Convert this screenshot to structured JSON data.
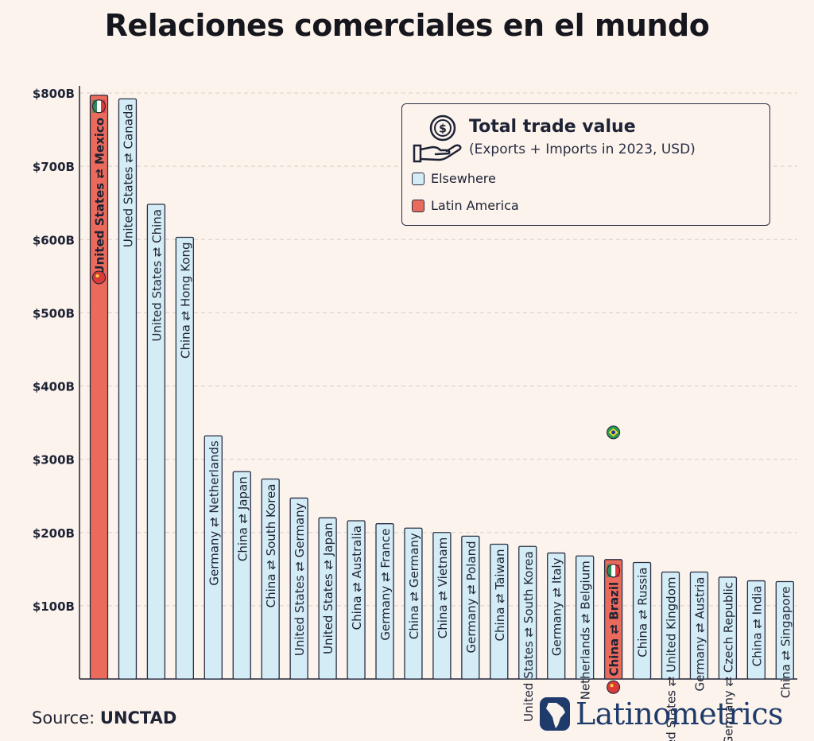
{
  "title": "Relaciones comerciales en el mundo",
  "legend": {
    "title": "Total trade value",
    "subtitle": "(Exports + Imports in 2023, USD)",
    "items": [
      {
        "label": "Elsewhere",
        "color": "#d4ecf5"
      },
      {
        "label": "Latin America",
        "color": "#ea6b5c"
      }
    ]
  },
  "source": {
    "prefix": "Source:",
    "name": "UNCTAD"
  },
  "brand": "Latinometrics",
  "colors": {
    "elsewhere": "#d4ecf5",
    "latin_america": "#ea6b5c",
    "outline": "#2a2f45",
    "background": "#fbf3ec"
  },
  "chart_data": {
    "type": "bar",
    "title": "Relaciones comerciales en el mundo",
    "ylim": [
      0,
      800
    ],
    "yticks": [
      "$100B",
      "$200B",
      "$300B",
      "$400B",
      "$500B",
      "$600B",
      "$700B",
      "$800B"
    ],
    "grid": true,
    "legend_position": "top-right",
    "categories": [
      "United States ⇄ Mexico",
      "United States ⇄ Canada",
      "United States ⇄ China",
      "China ⇄ Hong Kong",
      "Germany ⇄ Netherlands",
      "China ⇄ Japan",
      "China ⇄ South Korea",
      "United States ⇄ Germany",
      "United States ⇄ Japan",
      "China ⇄ Australia",
      "Germany ⇄ France",
      "China ⇄ Germany",
      "China ⇄ Vietnam",
      "Germany ⇄ Poland",
      "China ⇄ Taiwan",
      "United States ⇄ South Korea",
      "Germany ⇄ Italy",
      "Netherlands ⇄ Belgium",
      "China ⇄ Brazil",
      "China ⇄ Russia",
      "United States ⇄ United Kingdom",
      "Germany ⇄ Austria",
      "Germany ⇄ Czech Republic",
      "China ⇄ India",
      "China ⇄ Singapore"
    ],
    "values": [
      797,
      792,
      648,
      603,
      332,
      283,
      273,
      247,
      220,
      216,
      212,
      206,
      200,
      195,
      184,
      181,
      172,
      168,
      163,
      159,
      146,
      146,
      139,
      134,
      133
    ],
    "groups": [
      "Latin America",
      "Elsewhere",
      "Elsewhere",
      "Elsewhere",
      "Elsewhere",
      "Elsewhere",
      "Elsewhere",
      "Elsewhere",
      "Elsewhere",
      "Elsewhere",
      "Elsewhere",
      "Elsewhere",
      "Elsewhere",
      "Elsewhere",
      "Elsewhere",
      "Elsewhere",
      "Elsewhere",
      "Elsewhere",
      "Latin America",
      "Elsewhere",
      "Elsewhere",
      "Elsewhere",
      "Elsewhere",
      "Elsewhere",
      "Elsewhere"
    ]
  }
}
